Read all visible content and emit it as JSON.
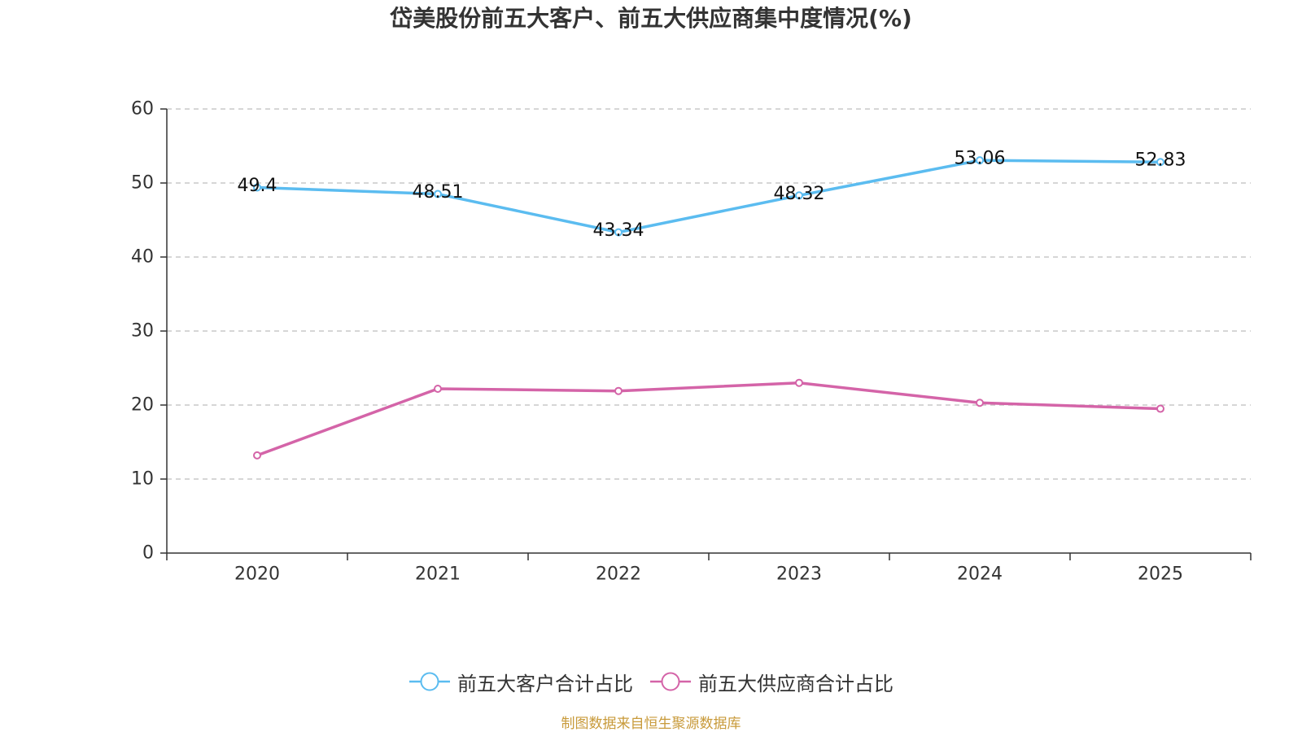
{
  "source": "制图数据来自恒生聚源数据库",
  "chart_data": {
    "type": "line",
    "title": "岱美股份前五大客户、前五大供应商集中度情况(%)",
    "categories": [
      "2020",
      "2021",
      "2022",
      "2023",
      "2024",
      "2025"
    ],
    "ylim": [
      0,
      60
    ],
    "yticks": [
      0,
      10,
      20,
      30,
      40,
      50,
      60
    ],
    "grid": true,
    "legend_position": "bottom",
    "series": [
      {
        "name": "前五大客户合计占比",
        "color": "#5bbcf0",
        "data_labels": true,
        "values": [
          49.4,
          48.51,
          43.34,
          48.32,
          53.06,
          52.83
        ]
      },
      {
        "name": "前五大供应商合计占比",
        "color": "#d464a8",
        "data_labels": false,
        "values": [
          13.2,
          22.2,
          21.9,
          23.0,
          20.3,
          19.5
        ]
      }
    ]
  }
}
